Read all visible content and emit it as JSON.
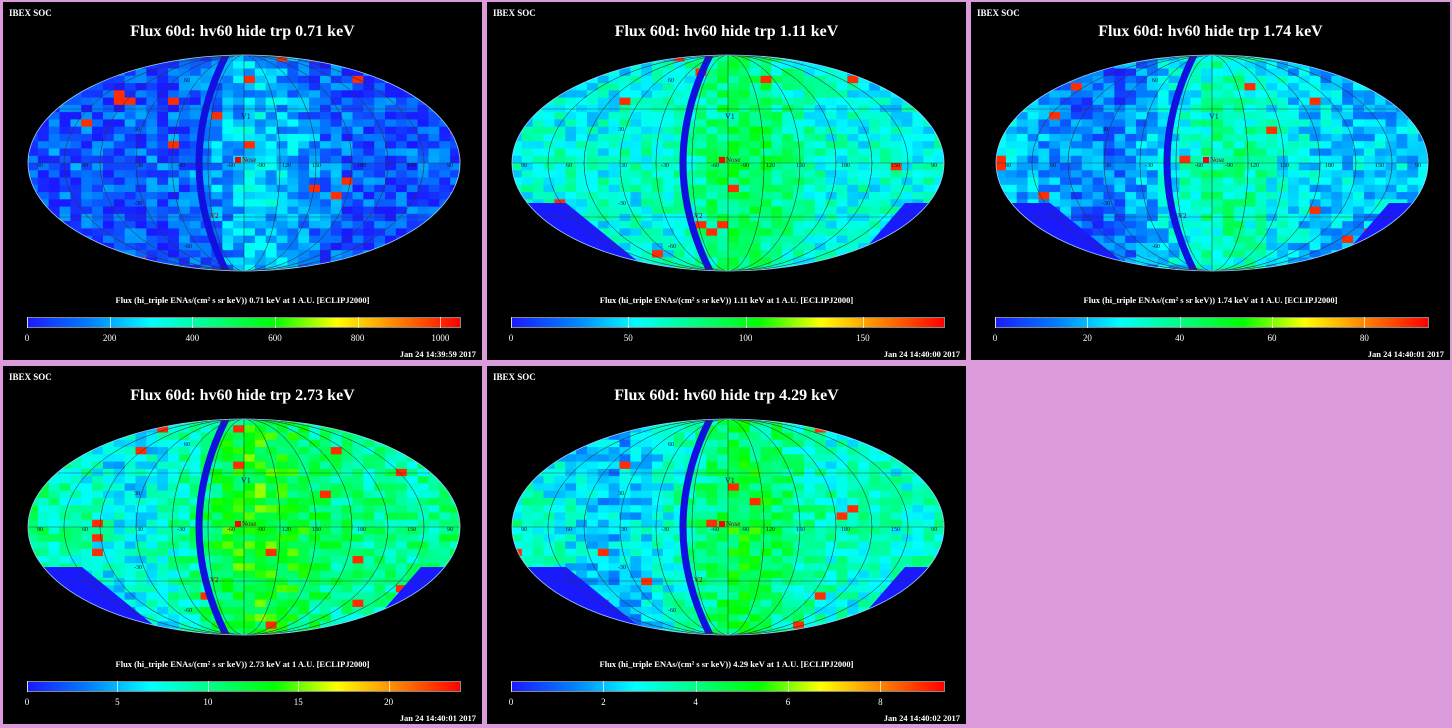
{
  "panels": [
    {
      "soc": "IBEX SOC",
      "title": "Flux 60d: hv60 hide trp 0.71 keV",
      "colorbar_label": "Flux (hi_triple ENAs/(cm² s sr keV)) 0.71 keV at 1 A.U. [ECLIPJ2000]",
      "timestamp": "Jan 24 14:39:59 2017",
      "ticks": [
        "0",
        "200",
        "400",
        "600",
        "800",
        "1000"
      ],
      "tick_values": [
        0,
        200,
        400,
        600,
        800,
        1000
      ],
      "vmax": 1050,
      "show_tail": true
    },
    {
      "soc": "IBEX SOC",
      "title": "Flux 60d: hv60 hide trp 1.11 keV",
      "colorbar_label": "Flux (hi_triple ENAs/(cm² s sr keV)) 1.11 keV at 1 A.U. [ECLIPJ2000]",
      "timestamp": "Jan 24 14:40:00 2017",
      "ticks": [
        "0",
        "50",
        "100",
        "150"
      ],
      "tick_values": [
        0,
        50,
        100,
        150
      ],
      "vmax": 185,
      "show_tail": false
    },
    {
      "soc": "IBEX SOC",
      "title": "Flux 60d: hv60 hide trp 1.74 keV",
      "colorbar_label": "Flux (hi_triple ENAs/(cm² s sr keV)) 1.74 keV at 1 A.U. [ECLIPJ2000]",
      "timestamp": "Jan 24 14:40:01 2017",
      "ticks": [
        "0",
        "20",
        "40",
        "60",
        "80"
      ],
      "tick_values": [
        0,
        20,
        40,
        60,
        80
      ],
      "vmax": 94,
      "show_tail": true
    },
    {
      "soc": "IBEX SOC",
      "title": "Flux 60d: hv60 hide trp 2.73 keV",
      "colorbar_label": "Flux (hi_triple ENAs/(cm² s sr keV)) 2.73 keV at 1 A.U. [ECLIPJ2000]",
      "timestamp": "Jan 24 14:40:01 2017",
      "ticks": [
        "0",
        "5",
        "10",
        "15",
        "20"
      ],
      "tick_values": [
        0,
        5,
        10,
        15,
        20
      ],
      "vmax": 24,
      "show_tail": true
    },
    {
      "soc": "IBEX SOC",
      "title": "Flux 60d: hv60 hide trp 4.29 keV",
      "colorbar_label": "Flux (hi_triple ENAs/(cm² s sr keV)) 4.29 keV at 1 A.U. [ECLIPJ2000]",
      "timestamp": "Jan 24 14:40:02 2017",
      "ticks": [
        "0",
        "2",
        "4",
        "6",
        "8"
      ],
      "tick_values": [
        0,
        2,
        4,
        6,
        8
      ],
      "vmax": 9.4,
      "show_tail": true
    }
  ],
  "map_labels": {
    "v1": "V1",
    "v2": "V2",
    "nose": "Nose",
    "tail": "Tail",
    "lon_ticks": [
      "90",
      "60",
      "30",
      "-30",
      "-60",
      "-90",
      "-120",
      "120",
      "150",
      "180",
      "150",
      "120",
      "90"
    ],
    "lat_ticks": [
      "60",
      "30",
      "-30",
      "-60"
    ]
  },
  "chart_data": [
    {
      "type": "heatmap",
      "title": "Flux 60d: hv60 hide trp 0.71 keV",
      "projection": "Mollweide sky map",
      "colorbar": "Flux (hi_triple ENAs/(cm² s sr keV)) 0.71 keV at 1 A.U. [ECLIPJ2000]",
      "clim": [
        0,
        1050
      ],
      "colormap": [
        "#1a1aff",
        "#00ffff",
        "#00ff00",
        "#ffff00",
        "#ff0000"
      ]
    },
    {
      "type": "heatmap",
      "title": "Flux 60d: hv60 hide trp 1.11 keV",
      "projection": "Mollweide sky map",
      "colorbar": "Flux (hi_triple ENAs/(cm² s sr keV)) 1.11 keV at 1 A.U. [ECLIPJ2000]",
      "clim": [
        0,
        185
      ]
    },
    {
      "type": "heatmap",
      "title": "Flux 60d: hv60 hide trp 1.74 keV",
      "projection": "Mollweide sky map",
      "colorbar": "Flux (hi_triple ENAs/(cm² s sr keV)) 1.74 keV at 1 A.U. [ECLIPJ2000]",
      "clim": [
        0,
        94
      ]
    },
    {
      "type": "heatmap",
      "title": "Flux 60d: hv60 hide trp 2.73 keV",
      "projection": "Mollweide sky map",
      "colorbar": "Flux (hi_triple ENAs/(cm² s sr keV)) 2.73 keV at 1 A.U. [ECLIPJ2000]",
      "clim": [
        0,
        24
      ]
    },
    {
      "type": "heatmap",
      "title": "Flux 60d: hv60 hide trp 4.29 keV",
      "projection": "Mollweide sky map",
      "colorbar": "Flux (hi_triple ENAs/(cm² s sr keV)) 4.29 keV at 1 A.U. [ECLIPJ2000]",
      "clim": [
        0,
        9.4
      ]
    }
  ],
  "colors": {
    "background": "#db9ad9",
    "panel": "#000000",
    "colormap": [
      "#1a1aff",
      "#0080ff",
      "#00ffff",
      "#00ff80",
      "#00ff00",
      "#ffff00",
      "#ff8000",
      "#ff0000"
    ]
  }
}
